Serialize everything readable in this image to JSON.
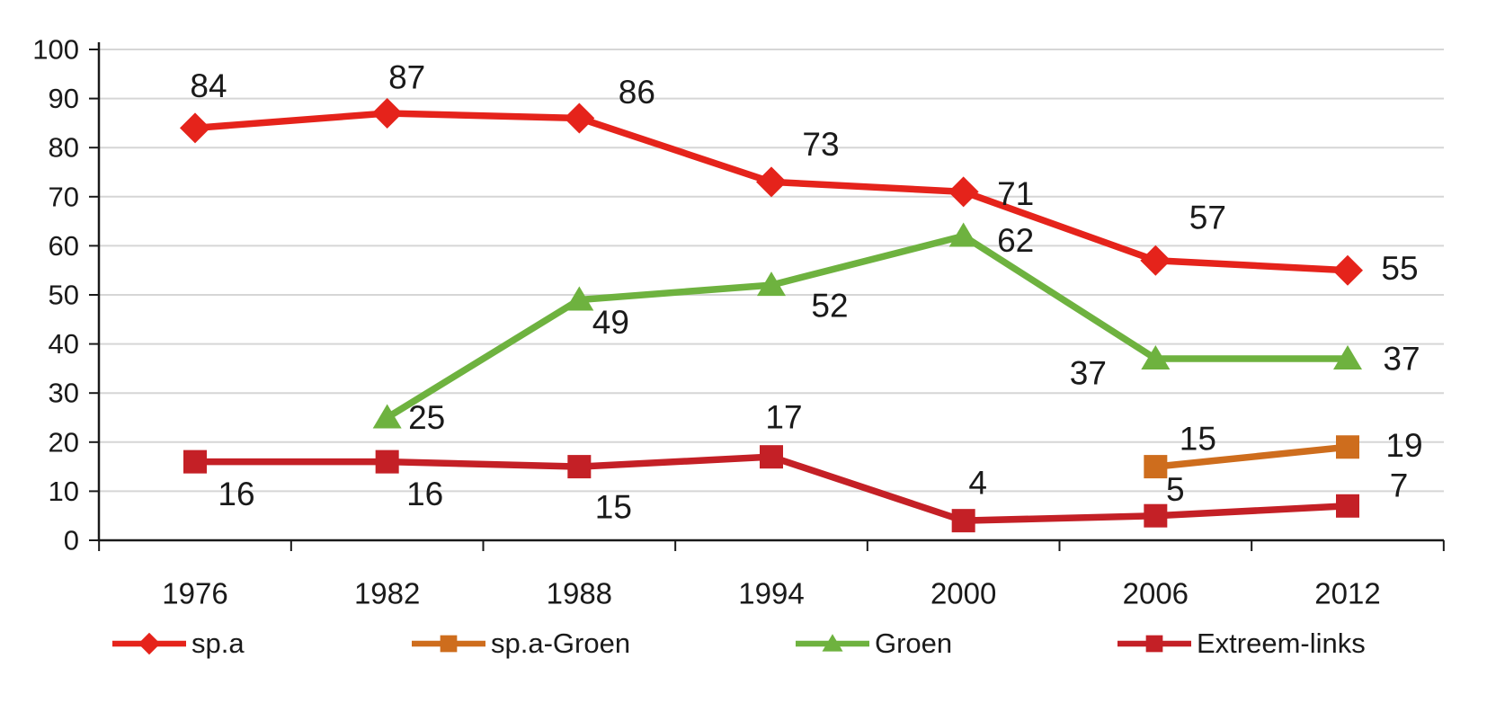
{
  "chart_data": {
    "type": "line",
    "title": "",
    "xlabel": "",
    "ylabel": "",
    "categories": [
      "1976",
      "1982",
      "1988",
      "1994",
      "2000",
      "2006",
      "2012"
    ],
    "ylim": [
      0,
      100
    ],
    "yticks": [
      0,
      10,
      20,
      30,
      40,
      50,
      60,
      70,
      80,
      90,
      100
    ],
    "grid": "horizontal",
    "legend_position": "bottom",
    "colors": {
      "gridline": "#d6d6d6",
      "axis": "#1a1a1a",
      "label_text": "#1a1a1a"
    },
    "series": [
      {
        "name": "sp.a",
        "color": "#e5231b",
        "marker": "diamond",
        "values": [
          84,
          87,
          86,
          73,
          71,
          57,
          55
        ],
        "label_offsets": [
          [
            15,
            -47
          ],
          [
            22,
            -40
          ],
          [
            64,
            -29
          ],
          [
            55,
            -42
          ],
          [
            58,
            2
          ],
          [
            58,
            -48
          ],
          [
            58,
            -2
          ]
        ]
      },
      {
        "name": "sp.a-Groen",
        "color": "#ce6d1d",
        "marker": "square",
        "values": [
          null,
          null,
          null,
          null,
          null,
          15,
          19
        ],
        "label_offsets": [
          null,
          null,
          null,
          null,
          null,
          [
            47,
            -31
          ],
          [
            63,
            -2
          ]
        ]
      },
      {
        "name": "Groen",
        "color": "#6eb23f",
        "marker": "triangle",
        "values": [
          null,
          25,
          49,
          52,
          62,
          37,
          37
        ],
        "label_offsets": [
          null,
          [
            44,
            0
          ],
          [
            35,
            25
          ],
          [
            65,
            23
          ],
          [
            58,
            5
          ],
          [
            -75,
            16
          ],
          [
            60,
            0
          ]
        ]
      },
      {
        "name": "Extreem-links",
        "color": "#c42026",
        "marker": "square",
        "values": [
          16,
          16,
          15,
          17,
          4,
          5,
          7
        ],
        "label_offsets": [
          [
            46,
            36
          ],
          [
            42,
            36
          ],
          [
            38,
            45
          ],
          [
            14,
            -44
          ],
          [
            16,
            -42
          ],
          [
            22,
            -29
          ],
          [
            57,
            -23
          ]
        ]
      }
    ]
  }
}
